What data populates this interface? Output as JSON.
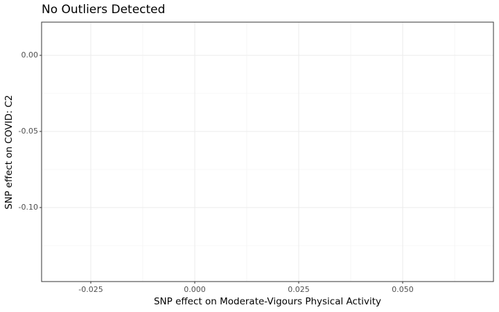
{
  "chart_data": {
    "type": "scatter",
    "title": "No Outliers Detected",
    "x_label": "SNP effect on Moderate-Vigours Physical Activity",
    "y_label": "SNP effect on COVID: C2",
    "xlim": [
      -0.03683,
      0.07183
    ],
    "xticks": [
      -0.025,
      {
        "value": 0,
        "label": "0.000"
      },
      0.025,
      {
        "value": 0.05,
        "label": "0.050"
      }
    ],
    "ylim": [
      -0.14864,
      0.02182
    ],
    "yticks": [
      {
        "value": 0,
        "label": "0.00"
      },
      -0.05,
      {
        "value": -0.1,
        "label": "-0.10"
      }
    ],
    "grid": true
  }
}
